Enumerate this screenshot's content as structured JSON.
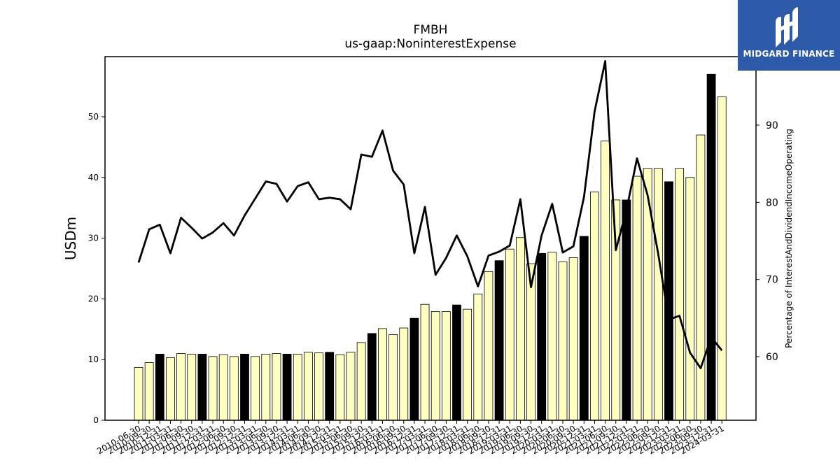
{
  "chart_data": {
    "type": "bar",
    "title": "FMBH",
    "subtitle": "us-gaap:NoninterestExpense",
    "ylabel": "USDm",
    "y2label": "Percentage of InterestAndDividendIncomeOperating",
    "ylim": [
      0,
      60
    ],
    "y2lim": [
      51.5,
      98.5
    ],
    "yticks": [
      0,
      10,
      20,
      30,
      40,
      50
    ],
    "y2ticks": [
      60,
      70,
      80,
      90
    ],
    "categories": [
      "2010-06-30",
      "2010-09-30",
      "2010-12-31",
      "2011-03-31",
      "2011-06-30",
      "2011-09-30",
      "2011-12-31",
      "2012-03-31",
      "2012-06-30",
      "2012-09-30",
      "2012-12-31",
      "2013-03-31",
      "2013-06-30",
      "2013-09-30",
      "2013-12-31",
      "2014-03-31",
      "2014-06-30",
      "2014-09-30",
      "2014-12-31",
      "2015-03-31",
      "2015-06-30",
      "2015-09-30",
      "2015-12-31",
      "2016-03-31",
      "2016-06-30",
      "2016-09-30",
      "2016-12-31",
      "2017-03-31",
      "2017-06-30",
      "2017-09-30",
      "2017-12-31",
      "2018-03-31",
      "2018-06-30",
      "2018-09-30",
      "2018-12-31",
      "2019-03-31",
      "2019-06-30",
      "2019-09-30",
      "2019-12-31",
      "2020-03-31",
      "2020-06-30",
      "2020-09-30",
      "2020-12-31",
      "2021-03-31",
      "2021-06-30",
      "2021-09-30",
      "2021-12-31",
      "2022-03-31",
      "2022-06-30",
      "2022-09-30",
      "2022-12-31",
      "2023-03-31",
      "2023-06-30",
      "2023-09-30",
      "2023-12-31",
      "2024-03-31"
    ],
    "series": [
      {
        "values": [
          8.7,
          9.5,
          10.9,
          10.3,
          11.0,
          10.9,
          10.9,
          10.5,
          10.8,
          10.5,
          10.9,
          10.5,
          10.9,
          11.0,
          10.9,
          10.9,
          11.2,
          11.1,
          11.2,
          10.8,
          11.2,
          12.8,
          14.3,
          15.1,
          14.1,
          15.2,
          16.8,
          19.1,
          17.9,
          17.9,
          19.0,
          18.3,
          20.8,
          24.5,
          26.3,
          28.2,
          30.1,
          25.8,
          27.5,
          27.7,
          26.1,
          26.8,
          30.3,
          37.6,
          46.0,
          36.3,
          36.3,
          40.2,
          41.5,
          41.5,
          39.3,
          41.5,
          40.0,
          47.0,
          57.0,
          53.3
        ],
        "highlight": [
          false,
          false,
          true,
          false,
          false,
          false,
          true,
          false,
          false,
          false,
          true,
          false,
          false,
          false,
          true,
          false,
          false,
          false,
          true,
          false,
          false,
          false,
          true,
          false,
          false,
          false,
          true,
          false,
          false,
          false,
          true,
          false,
          false,
          false,
          true,
          false,
          false,
          false,
          true,
          false,
          false,
          false,
          true,
          false,
          false,
          false,
          true,
          false,
          false,
          false,
          true,
          false,
          false,
          false,
          true,
          false
        ],
        "colors": {
          "normal": "#ffffc0",
          "highlight": "#000000",
          "edge": "#000000"
        }
      },
      {
        "type": "line",
        "axis": "right",
        "color": "#000000",
        "values": [
          72.2,
          76.5,
          77.1,
          73.4,
          78.0,
          76.7,
          75.3,
          76.1,
          77.3,
          75.7,
          78.3,
          80.5,
          82.7,
          82.4,
          80.1,
          82.1,
          82.6,
          80.4,
          80.6,
          80.4,
          79.1,
          86.2,
          85.9,
          89.3,
          84.1,
          82.3,
          73.4,
          79.4,
          70.6,
          72.8,
          75.7,
          73.0,
          69.1,
          73.1,
          73.6,
          74.4,
          80.4,
          69.0,
          75.7,
          79.8,
          73.5,
          74.3,
          80.7,
          91.8,
          98.3,
          73.8,
          79.0,
          85.7,
          80.9,
          73.3,
          64.8,
          65.3,
          60.5,
          58.5,
          62.5,
          60.8
        ]
      }
    ]
  },
  "logo": {
    "text": "MIDGARD FINANCE"
  }
}
